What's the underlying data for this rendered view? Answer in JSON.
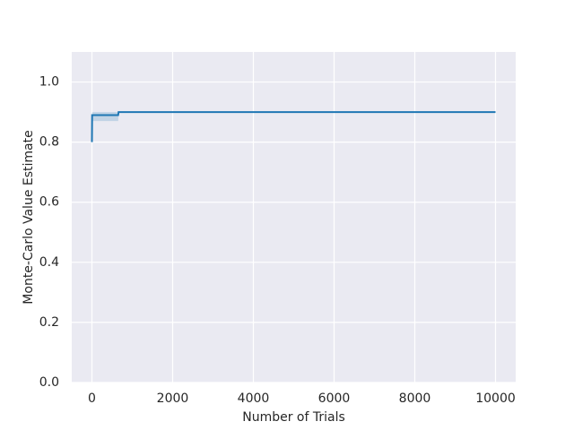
{
  "chart_data": {
    "type": "line",
    "xlabel": "Number of Trials",
    "ylabel": "Monte-Carlo Value Estimate",
    "x": [
      0,
      5,
      650,
      660,
      10000
    ],
    "values": [
      0.8,
      0.89,
      0.89,
      0.9,
      0.9
    ],
    "lower": [
      0.8,
      0.87,
      0.87,
      0.9,
      0.9
    ],
    "upper": [
      0.8,
      0.9,
      0.9,
      0.9,
      0.9
    ],
    "color": "#1f77b4",
    "xlim": [
      -500,
      10500
    ],
    "xticks": [
      0,
      2000,
      4000,
      6000,
      8000,
      10000
    ],
    "ylim": [
      0,
      1.1
    ],
    "yticks": [
      {
        "value": 0,
        "label": "0.0"
      },
      {
        "value": 0.2,
        "label": "0.2"
      },
      {
        "value": 0.4,
        "label": "0.4"
      },
      {
        "value": 0.6,
        "label": "0.6"
      },
      {
        "value": 0.8,
        "label": "0.8"
      },
      {
        "value": 1.0,
        "label": "1.0"
      }
    ],
    "grid": true
  }
}
